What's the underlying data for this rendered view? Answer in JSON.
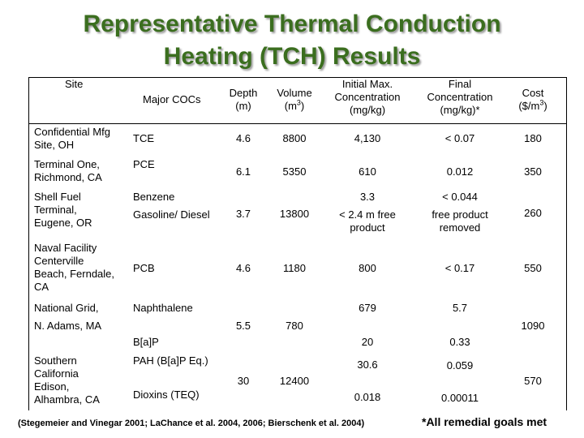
{
  "title": {
    "line1": "Representative Thermal Conduction",
    "line2": "Heating (TCH) Results"
  },
  "header": {
    "site": "Site",
    "major_cocs": "Major COCs",
    "depth_1": "Depth",
    "depth_2": "(m)",
    "volume_1": "Volume",
    "volume_2": "(m",
    "volume_sup": "3",
    "volume_3": ")",
    "initial_1": "Initial Max.",
    "initial_2": "Concentration",
    "initial_3": "(mg/kg)",
    "final_1": "Final",
    "final_2": "Concentration",
    "final_3": "(mg/kg)*",
    "cost_1": "Cost",
    "cost_2": "($/m",
    "cost_sup": "3",
    "cost_3": ")"
  },
  "rows": {
    "r1": {
      "site_1": "Confidential Mfg",
      "site_2": "Site, OH",
      "coc": "TCE",
      "depth": "4.6",
      "volume": "8800",
      "initial": "4,130",
      "final": "< 0.07",
      "cost": "180"
    },
    "r2": {
      "site_1": "Terminal One,",
      "site_2": "Richmond, CA",
      "coc": "PCE",
      "depth": "6.1",
      "volume": "5350",
      "initial": "610",
      "final": "0.012",
      "cost": "350"
    },
    "r3": {
      "site_1": "Shell Fuel",
      "site_2": "Terminal,",
      "site_3": "Eugene, OR",
      "coc_1": "Benzene",
      "coc_2": "Gasoline/ Diesel",
      "depth": "3.7",
      "volume": "13800",
      "initial_1": "3.3",
      "initial_2": "< 2.4 m free",
      "initial_3": "product",
      "final_1": "< 0.044",
      "final_2": "free product",
      "final_3": "removed",
      "cost": "260"
    },
    "r4": {
      "site_1": "Naval Facility",
      "site_2": "Centerville",
      "site_3": "Beach, Ferndale,",
      "site_4": "CA",
      "coc": "PCB",
      "depth": "4.6",
      "volume": "1180",
      "initial": "800",
      "final": "< 0.17",
      "cost": "550"
    },
    "r5": {
      "site_1": "National Grid,",
      "site_2": "N. Adams, MA",
      "coc_1": "Naphthalene",
      "coc_2": "B[a]P",
      "depth": "5.5",
      "volume": "780",
      "initial_1": "679",
      "initial_2": "20",
      "final_1": "5.7",
      "final_2": "0.33",
      "cost": "1090"
    },
    "r6": {
      "site_1": "Southern",
      "site_2": "California",
      "site_3": "Edison,",
      "site_4": "Alhambra, CA",
      "coc_1": "PAH (B[a]P Eq.)",
      "coc_2": "Dioxins (TEQ)",
      "depth": "30",
      "volume": "12400",
      "initial_1": "30.6",
      "initial_2": "0.018",
      "final_1": "0.059",
      "final_2": "0.00011",
      "cost": "570"
    }
  },
  "citation": "(Stegemeier and Vinegar 2001; LaChance et al. 2004, 2006; Bierschenk et al. 2004)",
  "footnote": "*All remedial goals met"
}
